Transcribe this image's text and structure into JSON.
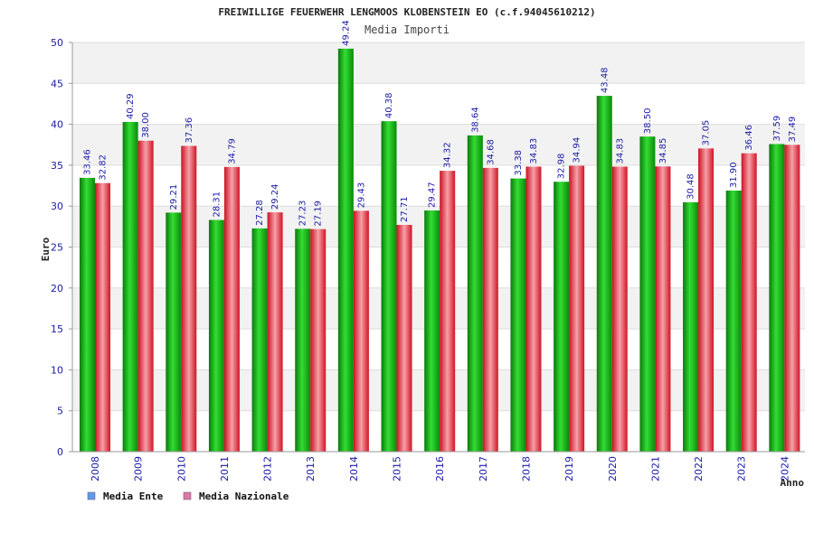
{
  "chart_data": {
    "type": "bar",
    "title": "FREIWILLIGE FEUERWEHR LENGMOOS KLOBENSTEIN EO (c.f.94045610212)",
    "subtitle": "Media Importi",
    "xlabel": "Anno",
    "ylabel": "Euro",
    "ylim": [
      0,
      50
    ],
    "yticks": [
      "0",
      "5",
      "10",
      "15",
      "20",
      "25",
      "30",
      "35",
      "40",
      "45",
      "50"
    ],
    "grid": true,
    "legend_position": "bottom-left",
    "categories": [
      "2008",
      "2009",
      "2010",
      "2011",
      "2012",
      "2013",
      "2014",
      "2015",
      "2016",
      "2017",
      "2018",
      "2019",
      "2020",
      "2021",
      "2022",
      "2023",
      "2024"
    ],
    "series": [
      {
        "name": "Media Ente",
        "color": "#22bb22",
        "legend_color": "#6699ee",
        "values": [
          33.46,
          40.29,
          29.21,
          28.31,
          27.28,
          27.23,
          49.24,
          40.38,
          29.47,
          38.64,
          33.38,
          32.98,
          43.48,
          38.5,
          30.48,
          31.9,
          37.59
        ],
        "labels": [
          "33.46",
          "40.29",
          "29.21",
          "28.31",
          "27.28",
          "27.23",
          "49.24",
          "40.38",
          "29.47",
          "38.64",
          "33.38",
          "32.98",
          "43.48",
          "38.50",
          "30.48",
          "31.90",
          "37.59"
        ]
      },
      {
        "name": "Media Nazionale",
        "color": "#ee3344",
        "legend_color": "#dd77aa",
        "values": [
          32.82,
          38.0,
          37.36,
          34.79,
          29.24,
          27.19,
          29.43,
          27.71,
          34.32,
          34.68,
          34.83,
          34.94,
          34.83,
          34.85,
          37.05,
          36.46,
          37.49
        ],
        "labels": [
          "32.82",
          "38.00",
          "37.36",
          "34.79",
          "29.24",
          "27.19",
          "29.43",
          "27.71",
          "34.32",
          "34.68",
          "34.83",
          "34.94",
          "34.83",
          "34.85",
          "37.05",
          "36.46",
          "37.49"
        ]
      }
    ]
  }
}
